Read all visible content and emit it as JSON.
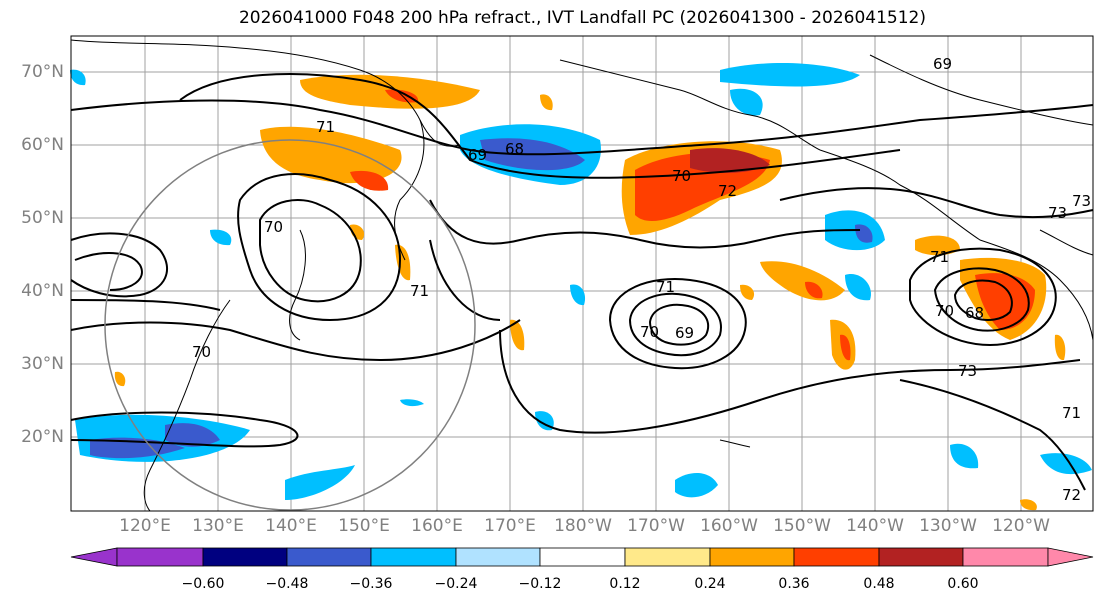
{
  "title": "2026041000 F048 200 hPa refract., IVT Landfall PC (2026041300 - 2026041512)",
  "lat_labels": [
    "70°N",
    "60°N",
    "50°N",
    "40°N",
    "30°N",
    "20°N"
  ],
  "lon_labels": [
    "120°E",
    "130°E",
    "140°E",
    "150°E",
    "160°E",
    "170°E",
    "180°W",
    "170°W",
    "160°W",
    "150°W",
    "140°W",
    "130°W",
    "120°W"
  ],
  "colorbar": {
    "ticks": [
      "−0.60",
      "−0.48",
      "−0.36",
      "−0.24",
      "−0.12",
      "0.12",
      "0.24",
      "0.36",
      "0.48",
      "0.60"
    ],
    "colors": [
      "#9933cc",
      "#000080",
      "#3a5acd",
      "#00bfff",
      "#b0e2ff",
      "#ffffff",
      "#ffe98a",
      "#ffa500",
      "#ff3f00",
      "#b22222",
      "#ff88aa"
    ]
  },
  "contour_labels": [
    "69",
    "68",
    "71",
    "70",
    "72",
    "73",
    "71",
    "69",
    "70",
    "71",
    "69",
    "70",
    "73",
    "70",
    "68",
    "73",
    "71",
    "70",
    "71",
    "72"
  ]
}
